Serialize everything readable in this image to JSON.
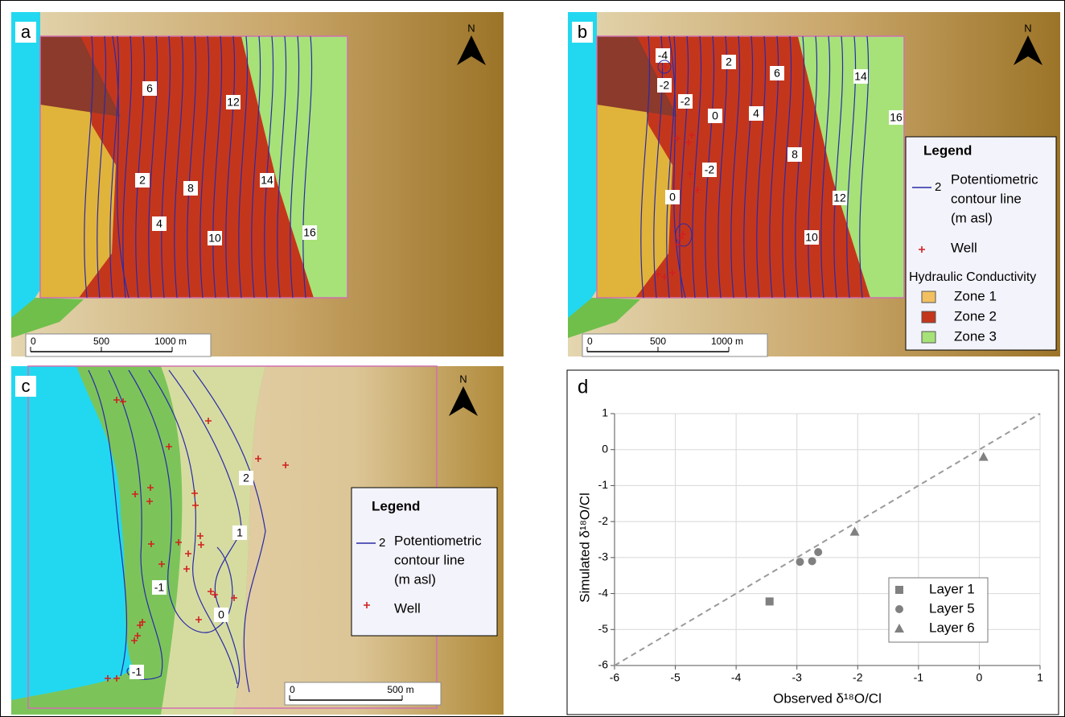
{
  "panels": [
    {
      "label": "a",
      "north": "N",
      "scale_labels": [
        "0",
        "500",
        "1000 m"
      ],
      "contour_labels": [
        "6",
        "12",
        "2",
        "8",
        "14",
        "4",
        "10",
        "16"
      ]
    },
    {
      "label": "b",
      "north": "N",
      "scale_labels": [
        "0",
        "500",
        "1000 m"
      ],
      "contour_labels": [
        "-4",
        "2",
        "6",
        "14",
        "-2",
        "-2",
        "0",
        "4",
        "16",
        "8",
        "-2",
        "0",
        "12",
        "10"
      ]
    },
    {
      "label": "c",
      "north": "N",
      "scale_labels": [
        "0",
        "500 m"
      ],
      "contour_labels": [
        "2",
        "1",
        "-1",
        "0",
        "-1"
      ]
    }
  ],
  "legend_b": {
    "title": "Legend",
    "line_sample": "2",
    "contour": [
      "Potentiometric",
      "contour line",
      "(m asl)"
    ],
    "well": "Well",
    "conductivity": "Hydraulic Conductivity",
    "zones": [
      "Zone 1",
      "Zone 2",
      "Zone 3"
    ]
  },
  "legend_c": {
    "title": "Legend",
    "line_sample": "2",
    "contour": [
      "Potentiometric",
      "contour line",
      "(m asl)"
    ],
    "well": "Well"
  },
  "chart_data": {
    "type": "scatter",
    "label": "d",
    "x_label": "Observed δ¹⁸O/Cl",
    "y_label": "Simulated δ¹⁸O/Cl",
    "xlim": [
      -6,
      1
    ],
    "ylim": [
      -6,
      1
    ],
    "xticks": [
      -6,
      -5,
      -4,
      -3,
      -2,
      -1,
      0,
      1
    ],
    "yticks": [
      -6,
      -5,
      -4,
      -3,
      -2,
      -1,
      0,
      1
    ],
    "grid": true,
    "series": [
      {
        "name": "Layer 1",
        "marker": "square",
        "color": "#808080",
        "x": [
          -3.45
        ],
        "values": [
          -4.22
        ]
      },
      {
        "name": "Layer 5",
        "marker": "circle",
        "color": "#808080",
        "x": [
          -2.95,
          -2.75,
          -2.65
        ],
        "values": [
          -3.12,
          -3.1,
          -2.85
        ]
      },
      {
        "name": "Layer 6",
        "marker": "triangle",
        "color": "#808080",
        "x": [
          -2.05,
          0.07
        ],
        "values": [
          -2.28,
          -0.2
        ]
      }
    ]
  }
}
